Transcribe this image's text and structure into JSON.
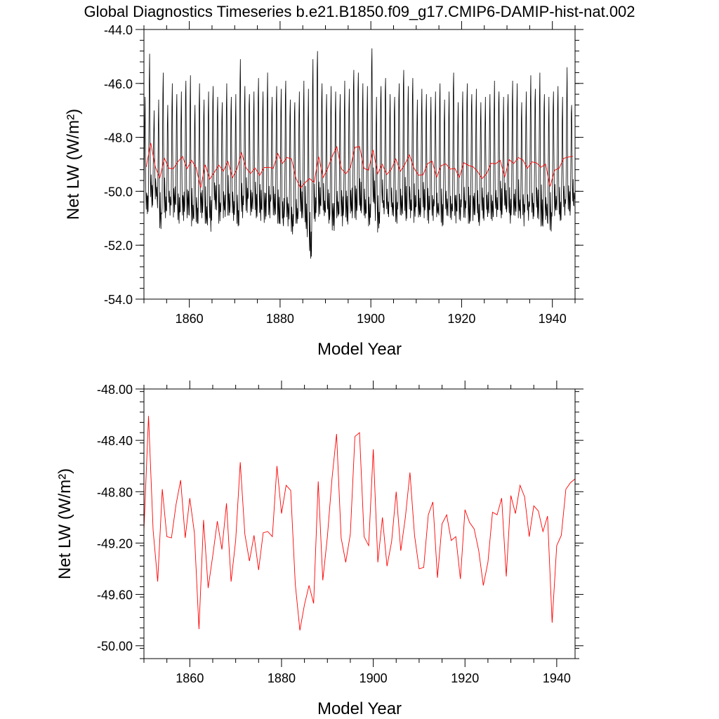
{
  "title": "Global Diagnostics Timeseries b.e21.B1850.f09_g17.CMIP6-DAMIP-hist-nat.002",
  "colors": {
    "annual": "#ff0000",
    "monthly": "#000000",
    "axes": "#000000"
  },
  "chart_data": [
    {
      "type": "line",
      "xlabel": "Model Year",
      "ylabel": "Net LW (W/m²)",
      "xlim": [
        1850,
        1945
      ],
      "ylim": [
        -54.0,
        -44.0
      ],
      "x_ticks": [
        1860,
        1880,
        1900,
        1920,
        1940
      ],
      "x_tick_labels": [
        "1860",
        "1880",
        "1900",
        "1920",
        "1940"
      ],
      "y_ticks": [
        -54,
        -52,
        -50,
        -48,
        -46,
        -44
      ],
      "y_tick_labels": [
        "-54.0",
        "-52.0",
        "-50.0",
        "-48.0",
        "-46.0",
        "-44.0"
      ],
      "grid": false,
      "series": [
        {
          "values_kind": "monthly",
          "color": "#000000",
          "x_start": 1850.0,
          "x_step": 0.08333,
          "annual_peaks": [
            -46.5,
            -44.9,
            -47.0,
            -46.6,
            -45.6,
            -46.8,
            -46.0,
            -46.4,
            -46.3,
            -45.9,
            -45.7,
            -46.8,
            -46.0,
            -46.6,
            -46.3,
            -46.1,
            -46.5,
            -46.7,
            -46.0,
            -46.5,
            -46.4,
            -45.1,
            -46.1,
            -46.4,
            -46.3,
            -45.8,
            -46.3,
            -45.6,
            -46.5,
            -46.1,
            -46.2,
            -45.9,
            -46.6,
            -46.7,
            -46.3,
            -45.9,
            -46.2,
            -45.1,
            -44.8,
            -46.0,
            -46.4,
            -46.1,
            -46.3,
            -46.4,
            -45.9,
            -46.2,
            -45.5,
            -45.6,
            -46.0,
            -46.1,
            -44.7,
            -46.5,
            -46.1,
            -45.8,
            -46.4,
            -46.5,
            -46.0,
            -45.5,
            -46.1,
            -45.8,
            -46.6,
            -46.2,
            -46.4,
            -46.5,
            -46.3,
            -46.0,
            -46.6,
            -46.3,
            -45.6,
            -46.7,
            -46.3,
            -46.0,
            -46.4,
            -46.2,
            -46.7,
            -46.5,
            -46.4,
            -45.9,
            -46.3,
            -46.5,
            -46.4,
            -45.9,
            -46.0,
            -46.7,
            -46.3,
            -45.7,
            -46.2,
            -45.6,
            -46.4,
            -46.5,
            -46.3,
            -46.1,
            -46.5,
            -45.4,
            -46.8
          ],
          "annual_troughs": [
            -50.9,
            -50.6,
            -50.3,
            -51.4,
            -51.0,
            -50.9,
            -51.0,
            -51.2,
            -51.1,
            -51.0,
            -51.3,
            -51.2,
            -51.0,
            -51.2,
            -51.5,
            -50.8,
            -51.2,
            -51.0,
            -50.9,
            -51.1,
            -51.3,
            -51.0,
            -50.8,
            -50.9,
            -51.0,
            -51.1,
            -51.2,
            -51.0,
            -50.9,
            -51.2,
            -51.5,
            -51.3,
            -51.6,
            -51.2,
            -51.0,
            -51.4,
            -52.5,
            -51.3,
            -51.1,
            -51.0,
            -51.2,
            -51.5,
            -51.0,
            -51.3,
            -51.4,
            -51.0,
            -51.1,
            -50.9,
            -51.0,
            -51.3,
            -50.7,
            -51.6,
            -50.9,
            -51.1,
            -51.0,
            -51.2,
            -50.9,
            -51.1,
            -51.0,
            -51.2,
            -51.1,
            -51.0,
            -51.2,
            -51.1,
            -51.0,
            -51.3,
            -50.9,
            -51.2,
            -51.3,
            -51.1,
            -51.0,
            -51.2,
            -51.1,
            -51.3,
            -51.2,
            -51.0,
            -51.1,
            -51.2,
            -51.0,
            -50.9,
            -51.2,
            -51.1,
            -51.0,
            -51.3,
            -51.1,
            -51.2,
            -51.0,
            -51.4,
            -51.2,
            -51.5,
            -51.0,
            -51.1,
            -50.9,
            -51.0,
            -50.7
          ]
        },
        {
          "values_kind": "annual",
          "color": "#ff0000",
          "x": [
            1850,
            1851,
            1852,
            1853,
            1854,
            1855,
            1856,
            1857,
            1858,
            1859,
            1860,
            1861,
            1862,
            1863,
            1864,
            1865,
            1866,
            1867,
            1868,
            1869,
            1870,
            1871,
            1872,
            1873,
            1874,
            1875,
            1876,
            1877,
            1878,
            1879,
            1880,
            1881,
            1882,
            1883,
            1884,
            1885,
            1886,
            1887,
            1888,
            1889,
            1890,
            1891,
            1892,
            1893,
            1894,
            1895,
            1896,
            1897,
            1898,
            1899,
            1900,
            1901,
            1902,
            1903,
            1904,
            1905,
            1906,
            1907,
            1908,
            1909,
            1910,
            1911,
            1912,
            1913,
            1914,
            1915,
            1916,
            1917,
            1918,
            1919,
            1920,
            1921,
            1922,
            1923,
            1924,
            1925,
            1926,
            1927,
            1928,
            1929,
            1930,
            1931,
            1932,
            1933,
            1934,
            1935,
            1936,
            1937,
            1938,
            1939,
            1940,
            1941,
            1942,
            1943,
            1944
          ],
          "values": [
            -49.1,
            -48.21,
            -49.1,
            -49.5,
            -48.78,
            -49.15,
            -49.16,
            -48.9,
            -48.71,
            -49.16,
            -48.85,
            -49.12,
            -49.87,
            -49.02,
            -49.55,
            -49.3,
            -49.03,
            -49.25,
            -48.89,
            -49.5,
            -49.18,
            -48.57,
            -49.13,
            -49.34,
            -49.14,
            -49.41,
            -49.12,
            -49.11,
            -49.15,
            -48.6,
            -48.97,
            -48.75,
            -48.79,
            -49.52,
            -49.88,
            -49.68,
            -49.53,
            -49.67,
            -48.72,
            -49.49,
            -49.15,
            -48.7,
            -48.35,
            -49.16,
            -49.35,
            -49.13,
            -48.37,
            -48.34,
            -49.15,
            -49.22,
            -48.47,
            -49.35,
            -49.0,
            -49.38,
            -49.19,
            -48.8,
            -49.26,
            -49.0,
            -48.65,
            -49.14,
            -49.4,
            -49.39,
            -48.98,
            -48.88,
            -49.47,
            -49.05,
            -48.98,
            -49.18,
            -49.15,
            -49.48,
            -48.94,
            -49.04,
            -49.09,
            -49.26,
            -49.53,
            -49.35,
            -48.96,
            -48.98,
            -48.85,
            -49.46,
            -48.83,
            -48.97,
            -48.75,
            -48.84,
            -49.15,
            -48.91,
            -48.95,
            -49.11,
            -48.99,
            -49.82,
            -49.22,
            -49.14,
            -48.78,
            -48.73,
            -48.7
          ]
        }
      ]
    },
    {
      "type": "line",
      "xlabel": "Model Year",
      "ylabel": "Net LW (W/m²)",
      "xlim": [
        1850,
        1944
      ],
      "ylim": [
        -50.1,
        -48.0
      ],
      "x_ticks": [
        1860,
        1880,
        1900,
        1920,
        1940
      ],
      "x_tick_labels": [
        "1860",
        "1880",
        "1900",
        "1920",
        "1940"
      ],
      "y_ticks": [
        -50.0,
        -49.6,
        -49.2,
        -48.8,
        -48.4,
        -48.0
      ],
      "y_tick_labels": [
        "-50.00",
        "-49.60",
        "-49.20",
        "-48.80",
        "-48.40",
        "-48.00"
      ],
      "grid": false,
      "series": [
        {
          "values_kind": "annual",
          "color": "#ff0000",
          "x": [
            1850,
            1851,
            1852,
            1853,
            1854,
            1855,
            1856,
            1857,
            1858,
            1859,
            1860,
            1861,
            1862,
            1863,
            1864,
            1865,
            1866,
            1867,
            1868,
            1869,
            1870,
            1871,
            1872,
            1873,
            1874,
            1875,
            1876,
            1877,
            1878,
            1879,
            1880,
            1881,
            1882,
            1883,
            1884,
            1885,
            1886,
            1887,
            1888,
            1889,
            1890,
            1891,
            1892,
            1893,
            1894,
            1895,
            1896,
            1897,
            1898,
            1899,
            1900,
            1901,
            1902,
            1903,
            1904,
            1905,
            1906,
            1907,
            1908,
            1909,
            1910,
            1911,
            1912,
            1913,
            1914,
            1915,
            1916,
            1917,
            1918,
            1919,
            1920,
            1921,
            1922,
            1923,
            1924,
            1925,
            1926,
            1927,
            1928,
            1929,
            1930,
            1931,
            1932,
            1933,
            1934,
            1935,
            1936,
            1937,
            1938,
            1939,
            1940,
            1941,
            1942,
            1943,
            1944
          ],
          "values": [
            -49.1,
            -48.21,
            -49.1,
            -49.5,
            -48.78,
            -49.15,
            -49.16,
            -48.9,
            -48.71,
            -49.16,
            -48.85,
            -49.12,
            -49.87,
            -49.02,
            -49.55,
            -49.3,
            -49.03,
            -49.25,
            -48.89,
            -49.5,
            -49.18,
            -48.57,
            -49.13,
            -49.34,
            -49.14,
            -49.41,
            -49.12,
            -49.11,
            -49.15,
            -48.6,
            -48.97,
            -48.75,
            -48.79,
            -49.52,
            -49.88,
            -49.68,
            -49.53,
            -49.67,
            -48.72,
            -49.49,
            -49.15,
            -48.7,
            -48.35,
            -49.16,
            -49.35,
            -49.13,
            -48.37,
            -48.34,
            -49.15,
            -49.22,
            -48.47,
            -49.35,
            -49.0,
            -49.38,
            -49.19,
            -48.8,
            -49.26,
            -49.0,
            -48.65,
            -49.14,
            -49.4,
            -49.39,
            -48.98,
            -48.88,
            -49.47,
            -49.05,
            -48.98,
            -49.18,
            -49.15,
            -49.48,
            -48.94,
            -49.04,
            -49.09,
            -49.26,
            -49.53,
            -49.35,
            -48.96,
            -48.98,
            -48.85,
            -49.46,
            -48.83,
            -48.97,
            -48.75,
            -48.84,
            -49.15,
            -48.91,
            -48.95,
            -49.11,
            -48.99,
            -49.82,
            -49.22,
            -49.14,
            -48.78,
            -48.73,
            -48.7
          ]
        }
      ]
    }
  ]
}
